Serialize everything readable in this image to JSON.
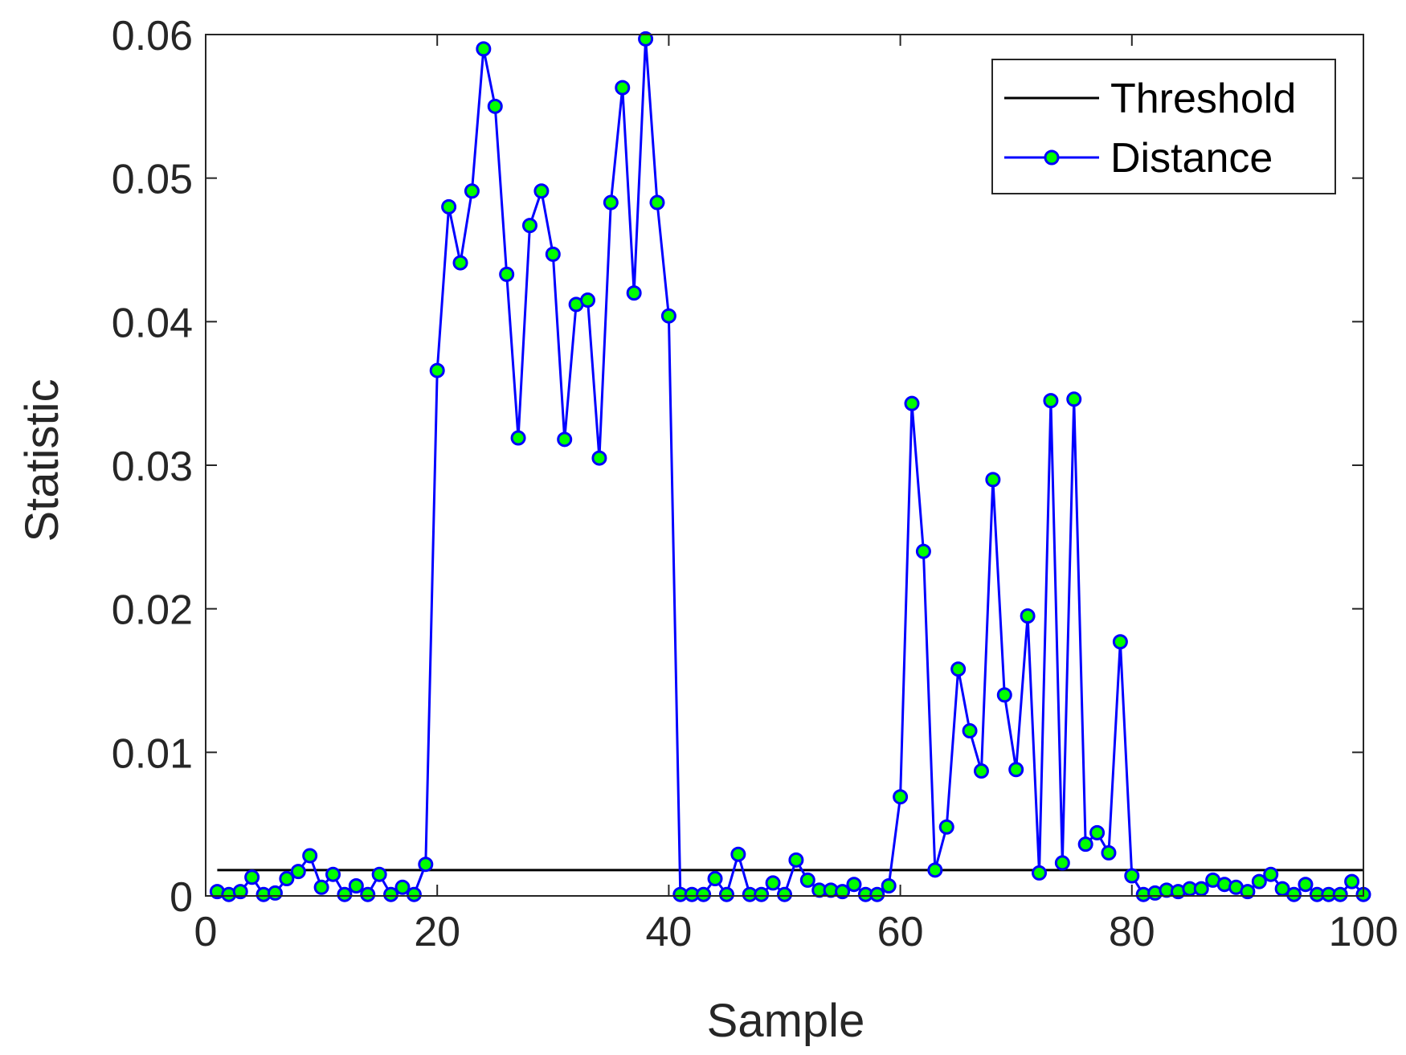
{
  "chart_data": {
    "type": "line",
    "title": "",
    "xlabel": "Sample",
    "ylabel": "Statistic",
    "xlim": [
      0,
      100
    ],
    "ylim": [
      0,
      0.06
    ],
    "xticks": [
      0,
      20,
      40,
      60,
      80,
      100
    ],
    "xtick_labels": [
      "0",
      "20",
      "40",
      "60",
      "80",
      "100"
    ],
    "yticks": [
      0,
      0.01,
      0.02,
      0.03,
      0.04,
      0.05,
      0.06
    ],
    "ytick_labels": [
      "0",
      "0.01",
      "0.02",
      "0.03",
      "0.04",
      "0.05",
      "0.06"
    ],
    "grid": false,
    "legend": "top-right",
    "series": [
      {
        "name": "Threshold",
        "color": "#000000",
        "marker": "none",
        "x": [
          1,
          100
        ],
        "y": [
          0.0018,
          0.0018
        ]
      },
      {
        "name": "Distance",
        "color": "#0000ff",
        "marker": "circle",
        "marker_fill": "#00ff00",
        "x": [
          1,
          2,
          3,
          4,
          5,
          6,
          7,
          8,
          9,
          10,
          11,
          12,
          13,
          14,
          15,
          16,
          17,
          18,
          19,
          20,
          21,
          22,
          23,
          24,
          25,
          26,
          27,
          28,
          29,
          30,
          31,
          32,
          33,
          34,
          35,
          36,
          37,
          38,
          39,
          40,
          41,
          42,
          43,
          44,
          45,
          46,
          47,
          48,
          49,
          50,
          51,
          52,
          53,
          54,
          55,
          56,
          57,
          58,
          59,
          60,
          61,
          62,
          63,
          64,
          65,
          66,
          67,
          68,
          69,
          70,
          71,
          72,
          73,
          74,
          75,
          76,
          77,
          78,
          79,
          80,
          81,
          82,
          83,
          84,
          85,
          86,
          87,
          88,
          89,
          90,
          91,
          92,
          93,
          94,
          95,
          96,
          97,
          98,
          99,
          100
        ],
        "y": [
          0.0003,
          0.0001,
          0.0003,
          0.0013,
          0.0001,
          0.0002,
          0.0012,
          0.0017,
          0.0028,
          0.0006,
          0.0015,
          0.0001,
          0.0007,
          0.0001,
          0.0015,
          0.0001,
          0.0006,
          0.0001,
          0.0022,
          0.0366,
          0.048,
          0.0441,
          0.0491,
          0.059,
          0.055,
          0.0433,
          0.0319,
          0.0467,
          0.0491,
          0.0447,
          0.0318,
          0.0412,
          0.0415,
          0.0305,
          0.0483,
          0.0563,
          0.042,
          0.0597,
          0.0483,
          0.0404,
          0.0001,
          0.0001,
          0.0001,
          0.0012,
          0.0001,
          0.0029,
          0.0001,
          0.0001,
          0.0009,
          0.0001,
          0.0025,
          0.0011,
          0.0004,
          0.0004,
          0.0003,
          0.0008,
          0.0001,
          0.0001,
          0.0007,
          0.0069,
          0.0343,
          0.024,
          0.0018,
          0.0048,
          0.0158,
          0.0115,
          0.0087,
          0.029,
          0.014,
          0.0088,
          0.0195,
          0.0016,
          0.0345,
          0.0023,
          0.0346,
          0.0036,
          0.0044,
          0.003,
          0.0177,
          0.0014,
          0.0001,
          0.0002,
          0.0004,
          0.0003,
          0.0005,
          0.0005,
          0.0011,
          0.0008,
          0.0006,
          0.0003,
          0.001,
          0.0015,
          0.0005,
          0.0001,
          0.0008,
          0.0001,
          0.0001,
          0.0001,
          0.001,
          0.0001
        ]
      }
    ]
  }
}
